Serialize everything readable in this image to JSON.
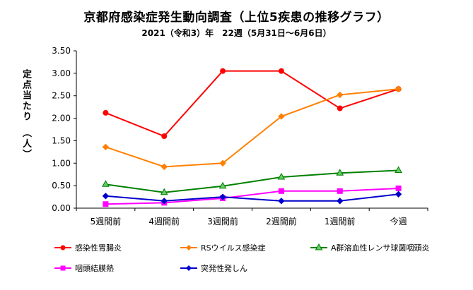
{
  "chart_data": {
    "type": "line",
    "title": "京都府感染症発生動向調査（上位5疾患の推移グラフ）",
    "subtitle": "2021（令和3）年　22週（5月31日～6月6日）",
    "ylabel": "定点当たり　（人）",
    "xlabel": "",
    "categories": [
      "5週間前",
      "4週間前",
      "3週間前",
      "2週間前",
      "1週間前",
      "今週"
    ],
    "ylim": [
      0,
      3.5
    ],
    "yticks": [
      "0.00",
      "0.50",
      "1.00",
      "1.50",
      "2.00",
      "2.50",
      "3.00",
      "3.50"
    ],
    "grid": false,
    "legend_position": "bottom",
    "series": [
      {
        "name": "感染性胃腸炎",
        "values": [
          2.12,
          1.6,
          3.05,
          3.05,
          2.22,
          2.65
        ],
        "color": "#ff0000",
        "marker": "circle"
      },
      {
        "name": "RSウイルス感染症",
        "values": [
          1.36,
          0.92,
          1.0,
          2.04,
          2.52,
          2.65
        ],
        "color": "#ff8000",
        "marker": "diamond"
      },
      {
        "name": "A群溶血性レンサ球菌咽頭炎",
        "values": [
          0.53,
          0.35,
          0.49,
          0.69,
          0.78,
          0.84
        ],
        "color": "#008000",
        "marker": "triangle"
      },
      {
        "name": "咽頭結膜熱",
        "values": [
          0.09,
          0.12,
          0.22,
          0.38,
          0.38,
          0.44
        ],
        "color": "#ff00ff",
        "marker": "square"
      },
      {
        "name": "突発性発しん",
        "values": [
          0.27,
          0.16,
          0.25,
          0.16,
          0.16,
          0.31
        ],
        "color": "#0000cc",
        "marker": "diamond"
      }
    ]
  }
}
